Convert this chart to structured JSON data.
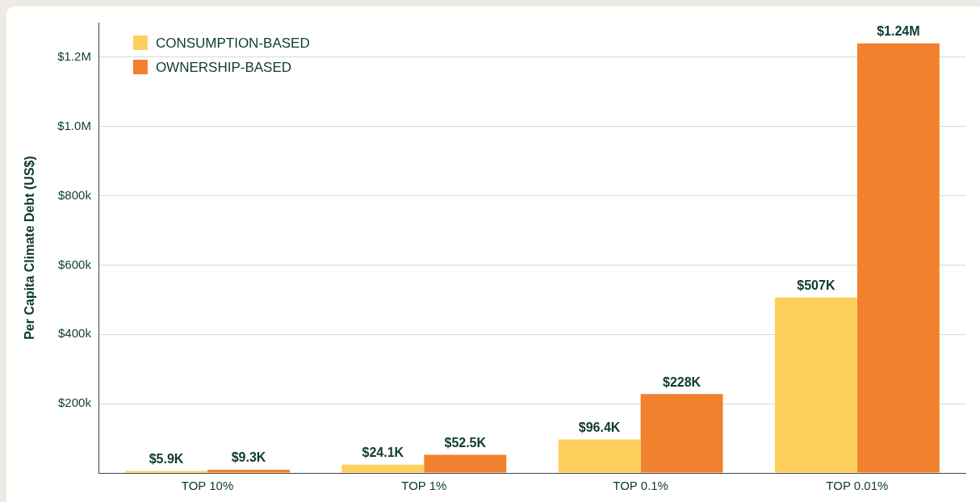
{
  "chart_data": {
    "type": "bar",
    "ylabel": "Per Capita Climate Debt (US$)",
    "categories": [
      "TOP 10%",
      "TOP 1%",
      "TOP 0.1%",
      "TOP 0.01%"
    ],
    "series": [
      {
        "name": "CONSUMPTION-BASED",
        "color": "#fdcf5d",
        "values": [
          5900,
          24100,
          96400,
          507000
        ],
        "value_labels": [
          "$5.9K",
          "$24.1K",
          "$96.4K",
          "$507K"
        ]
      },
      {
        "name": "OWNERSHIP-BASED",
        "color": "#f2812d",
        "values": [
          9300,
          52500,
          228000,
          1240000
        ],
        "value_labels": [
          "$9.3K",
          "$52.5K",
          "$228K",
          "$1.24M"
        ]
      }
    ],
    "ylim": [
      0,
      1300000
    ],
    "yticks": [
      {
        "value": 0,
        "label": null
      },
      {
        "value": 200000,
        "label": "$200k"
      },
      {
        "value": 400000,
        "label": "$400k"
      },
      {
        "value": 600000,
        "label": "$600k"
      },
      {
        "value": 800000,
        "label": "$800k"
      },
      {
        "value": 1000000,
        "label": "$1.0M"
      },
      {
        "value": 1200000,
        "label": "$1.2M"
      }
    ],
    "grid": "y",
    "legend": "top left"
  }
}
